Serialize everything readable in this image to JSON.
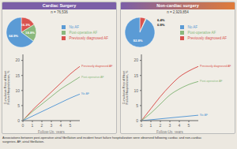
{
  "caption": "Associations between post-operative atrial fibrillation and incident heart failure hospitalization were observed following cardiac and non-cardiac\nsurgeries. AF, atrial fibrillation.",
  "chart_data": [
    {
      "type": "pie",
      "title": "Cardiac Surgery",
      "subtitle": "n = 76,536",
      "categories": [
        "Previously diagnosed AF",
        "Post-operative AF",
        "No AF"
      ],
      "values": [
        16.3,
        18.8,
        64.9
      ],
      "value_labels": [
        "16.3%",
        "18.8%",
        "64.9%"
      ],
      "colors": [
        "#d9534f",
        "#8ab87d",
        "#5b9bd5"
      ],
      "data_labels": true,
      "legend": "right"
    },
    {
      "type": "line",
      "x": [
        0,
        1,
        2,
        3,
        4,
        5,
        6
      ],
      "series": [
        {
          "name": "Previously diagnosed AF",
          "color": "#d9534f",
          "values": [
            0,
            3.5,
            6.5,
            9.5,
            12.5,
            15.5,
            18.0
          ]
        },
        {
          "name": "Post-operative AF",
          "color": "#8ab87d",
          "values": [
            0,
            3.0,
            5.5,
            8.0,
            10.5,
            12.5,
            14.5
          ]
        },
        {
          "name": "No AF",
          "color": "#5b9bd5",
          "values": [
            0,
            1.5,
            3.0,
            4.5,
            6.0,
            7.5,
            8.8
          ]
        }
      ],
      "xlim": [
        0,
        6
      ],
      "ylim": [
        0,
        22
      ],
      "xticks": [
        0,
        1,
        2,
        3,
        4,
        5
      ],
      "yticks": [
        0,
        5,
        10,
        15,
        20
      ],
      "xlabel": "Follow-Up, years",
      "ylabel": "Cumulative Rate of Heart\nFailure Hospitalization, %",
      "grid": false
    },
    {
      "type": "pie",
      "title": "Non-cardiac surgery",
      "subtitle": "n = 2,929,854",
      "categories": [
        "Previously diagnosed AF",
        "Post-operative AF",
        "No AF"
      ],
      "values": [
        6.4,
        0.8,
        92.8
      ],
      "value_labels": [
        "6.4%",
        "0.8%",
        "92.8%"
      ],
      "colors": [
        "#d9534f",
        "#8ab87d",
        "#5b9bd5"
      ],
      "data_labels": true,
      "legend": "right"
    },
    {
      "type": "line",
      "x": [
        0,
        1,
        2,
        3,
        4,
        5,
        6
      ],
      "series": [
        {
          "name": "Previously diagnosed AF",
          "color": "#d9534f",
          "values": [
            0,
            4.0,
            8.0,
            11.5,
            14.5,
            16.5,
            18.0
          ]
        },
        {
          "name": "Post-operative AF",
          "color": "#8ab87d",
          "values": [
            0,
            2.5,
            5.5,
            8.5,
            10.5,
            12.0,
            13.0
          ]
        },
        {
          "name": "No AF",
          "color": "#5b9bd5",
          "values": [
            0,
            0.3,
            0.6,
            0.9,
            1.2,
            1.5,
            1.8
          ]
        }
      ],
      "xlim": [
        0,
        6
      ],
      "ylim": [
        0,
        22
      ],
      "xticks": [
        0,
        1,
        2,
        3,
        4,
        5
      ],
      "yticks": [
        0,
        5,
        10,
        15,
        20
      ],
      "xlabel": "Follow-Up, years",
      "ylabel": "Cumulative Rate of Heart\nFailure Hospitalization, %",
      "grid": false
    }
  ]
}
